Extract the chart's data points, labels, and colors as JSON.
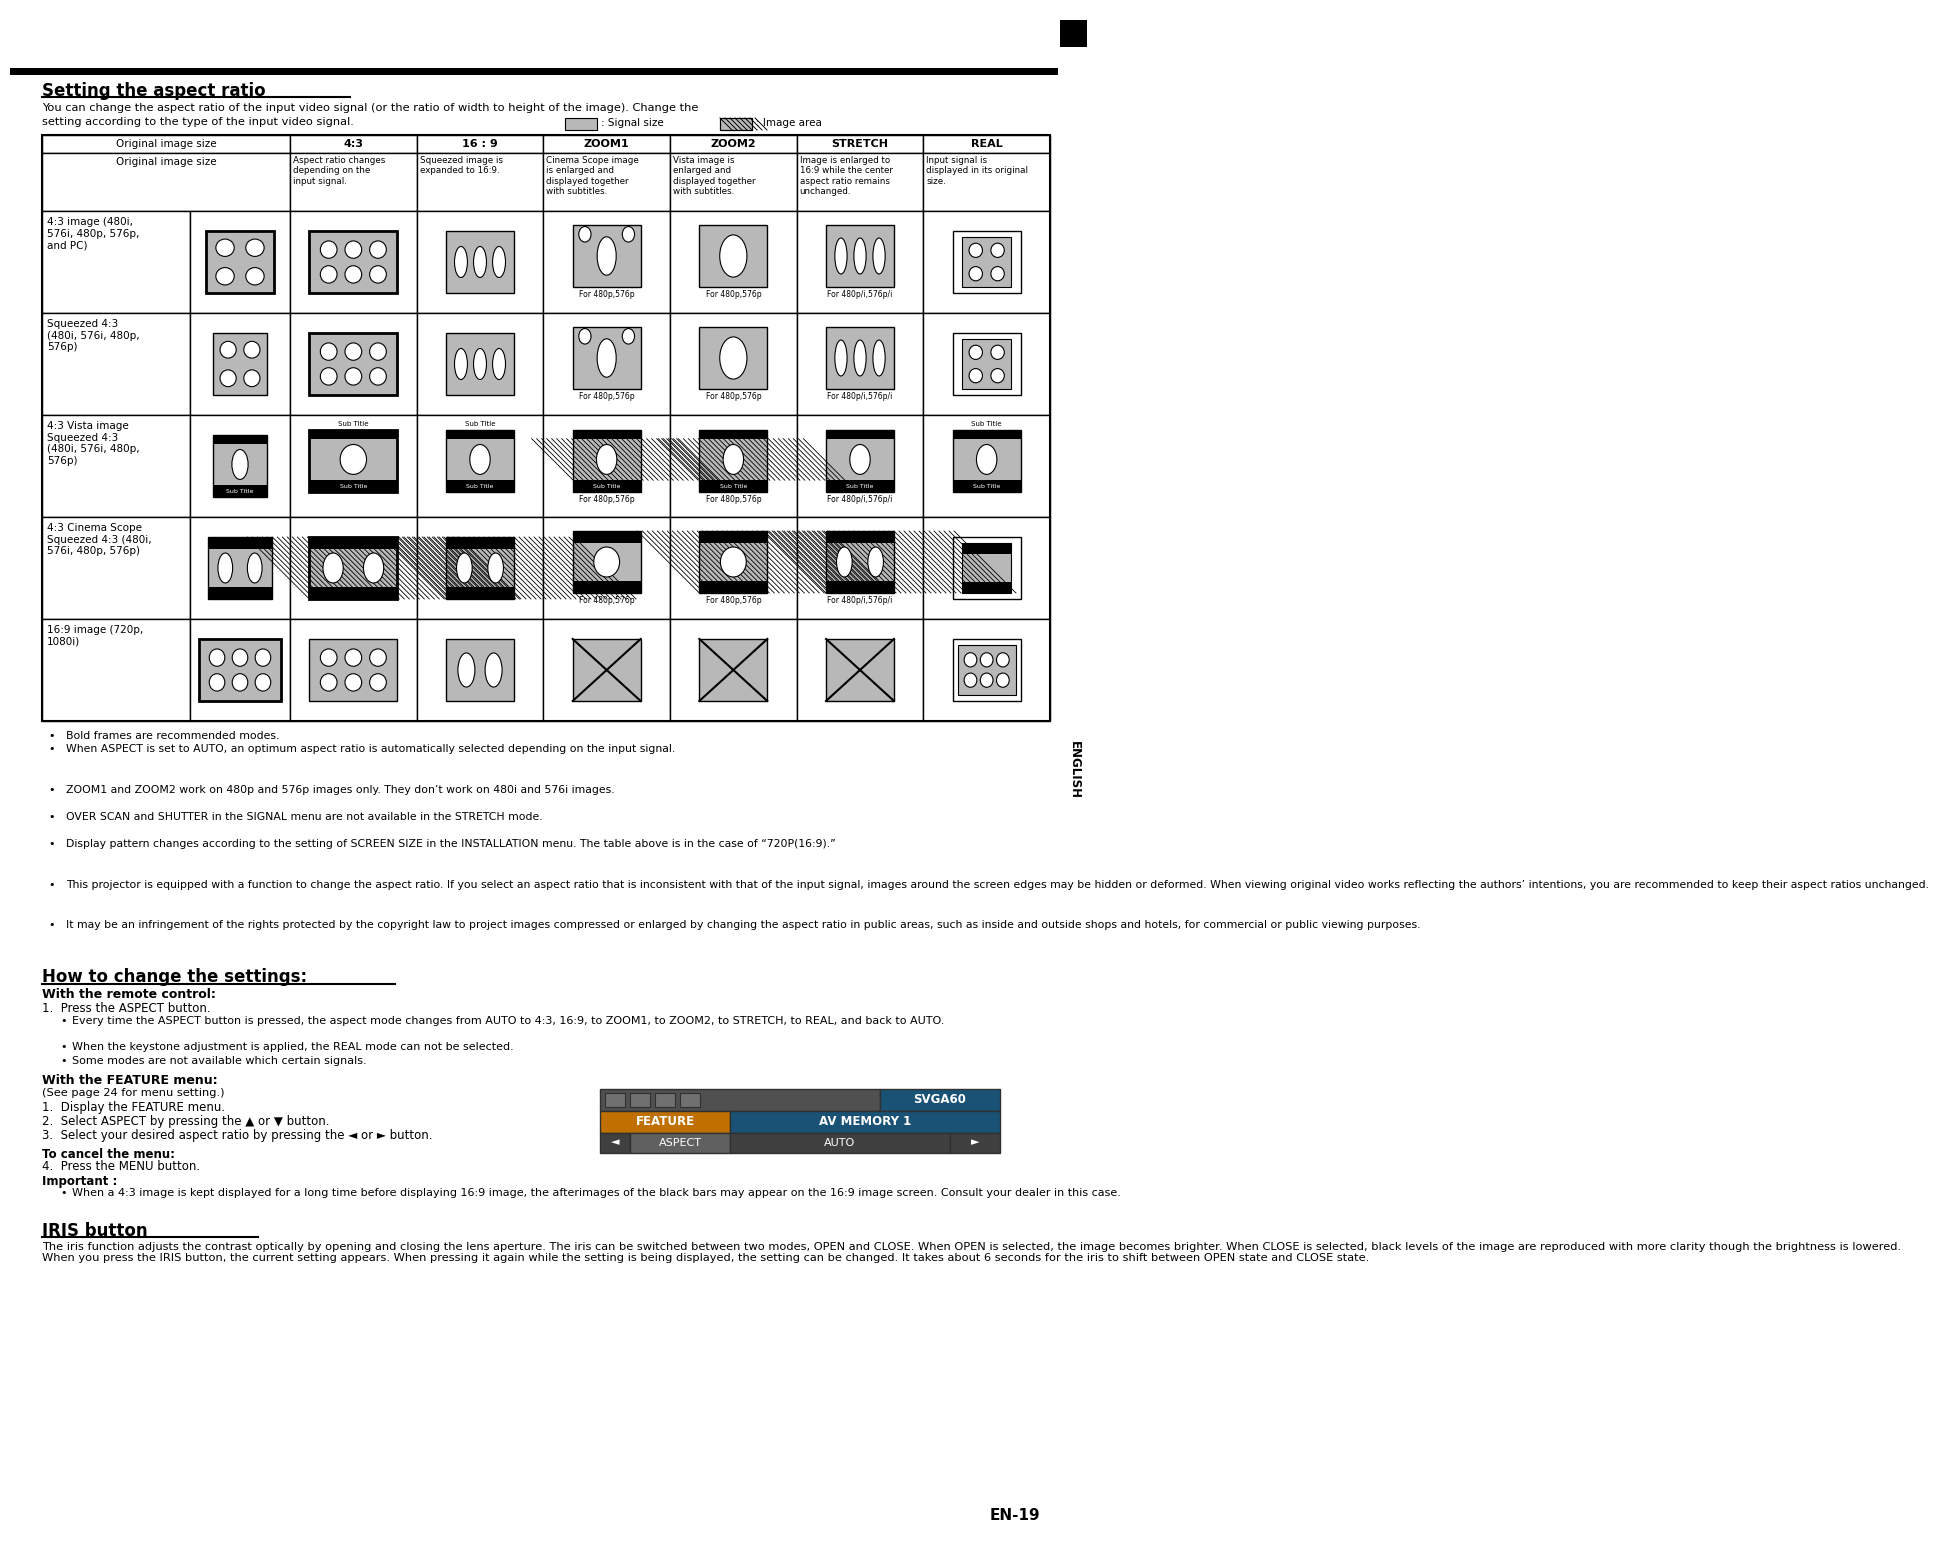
{
  "title": "Setting the aspect ratio",
  "page_num": "EN-19",
  "intro_line1": "You can change the aspect ratio of the input video signal (or the ratio of width to height of the image). Change the",
  "intro_line2": "setting according to the type of the input video signal.",
  "legend_signal": ": Signal size",
  "legend_image": ": Image area",
  "col_headers": [
    "4:3",
    "16 : 9",
    "ZOOM1",
    "ZOOM2",
    "STRETCH",
    "REAL"
  ],
  "col_desc": [
    "Aspect ratio changes\ndepending on the\ninput signal.",
    "Squeezed image is\nexpanded to 16:9.",
    "Cinema Scope image\nis enlarged and\ndisplayed together\nwith subtitles.",
    "Vista image is\nenlarged and\ndisplayed together\nwith subtitles.",
    "Image is enlarged to\n16:9 while the center\naspect ratio remains\nunchanged.",
    "Input signal is\ndisplayed in its original\nsize."
  ],
  "row_labels": [
    "4:3 image (480i,\n576i, 480p, 576p,\nand PC)",
    "Squeezed 4:3\n(480i, 576i, 480p,\n576p)",
    "4:3 Vista image\nSqueezed 4:3\n(480i, 576i, 480p,\n576p)",
    "4:3 Cinema Scope\nSqueezed 4:3 (480i,\n576i, 480p, 576p)",
    "16:9 image (720p,\n1080i)"
  ],
  "notes": [
    "Bold frames are recommended modes.",
    "When ASPECT is set to AUTO, an optimum aspect ratio is automatically selected depending on the input signal.",
    "ZOOM1 and ZOOM2 work on 480p and 576p images only. They don’t work on 480i and 576i images.",
    "OVER SCAN and SHUTTER in the SIGNAL menu are not available in the STRETCH mode.",
    "Display pattern changes according to the setting of SCREEN SIZE in the INSTALLATION menu. The table above is in the case of “720P(16:9).”",
    "This projector is equipped with a function to change the aspect ratio. If you select an aspect ratio that is inconsistent with that of the input signal, images around the screen edges may be hidden or deformed. When viewing original video works reflecting the authors’ intentions, you are recommended to keep their aspect ratios unchanged.",
    "It may be an infringement of the rights protected by the copyright law to project images compressed or enlarged by changing the aspect ratio in public areas, such as inside and outside shops and hotels, for commercial or public viewing purposes."
  ],
  "section2_title": "How to change the settings:",
  "remote_title": "With the remote control:",
  "remote_step1": "Press the ASPECT button.",
  "remote_bullets": [
    "Every time the ASPECT button is pressed, the aspect mode changes from AUTO to 4:3, 16:9, to ZOOM1, to ZOOM2, to STRETCH, to REAL, and back to AUTO.",
    "When the keystone adjustment is applied, the REAL mode can not be selected.",
    "Some modes are not available which certain signals."
  ],
  "feature_title": "With the FEATURE menu:",
  "feature_note": "(See page 24 for menu setting.)",
  "feature_steps": [
    "Display the FEATURE menu.",
    "Select ASPECT by pressing the ▲ or ▼ button.",
    "Select your desired aspect ratio by pressing the ◄ or ► button."
  ],
  "cancel_title": "To cancel the menu:",
  "cancel_step": "Press the MENU button.",
  "important_title": "Important :",
  "important_text": "When a 4:3 image is kept displayed for a long time before displaying 16:9 image, the afterimages of the black bars may appear on the 16:9 image screen. Consult your dealer in this case.",
  "iris_title": "IRIS button",
  "iris_text": "The iris function adjusts the contrast optically by opening and closing the lens aperture. The iris can be switched between two modes, OPEN and CLOSE. When OPEN is selected, the image becomes brighter. When CLOSE is selected, black levels of the image are reproduced with more clarity though the brightness is lowered.\nWhen you press the IRIS button, the current setting appears. When pressing it again while the setting is being displayed, the setting can be changed. It takes about 6 seconds for the iris to shift between OPEN state and CLOSE state.",
  "sidebar_text": "ENGLISH",
  "gray_fill": "#b8b8b8",
  "white": "#ffffff",
  "black": "#000000"
}
